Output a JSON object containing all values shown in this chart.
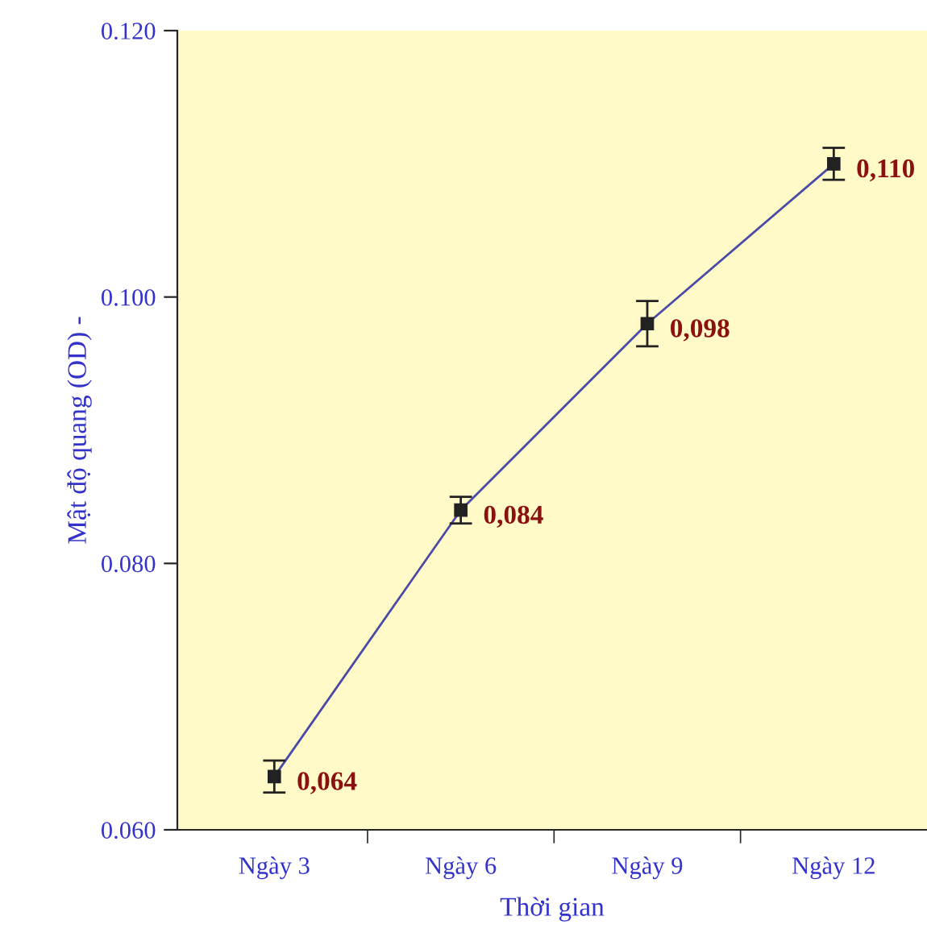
{
  "chart_data": {
    "type": "line",
    "xlabel": "Thời gian",
    "ylabel": "Mật độ quang (OD) -",
    "categories": [
      "Ngày 3",
      "Ngày 6",
      "Ngày 9",
      "Ngày 12"
    ],
    "series": [
      {
        "color": "#4a4aa8",
        "values": [
          0.064,
          0.084,
          0.098,
          0.11
        ],
        "errors": [
          0.0012,
          0.001,
          0.0017,
          0.0012
        ],
        "value_labels": [
          "0,064",
          "0,084",
          "0,098",
          "0,110"
        ]
      }
    ],
    "ylim": [
      0.06,
      0.12
    ],
    "yticks": [
      {
        "value": 0.06,
        "label": "0.060"
      },
      {
        "value": 0.08,
        "label": "0.080"
      },
      {
        "value": 0.1,
        "label": "0.100"
      },
      {
        "value": 0.12,
        "label": "0.120"
      }
    ],
    "marker": "square",
    "grid": false,
    "legend": false
  }
}
